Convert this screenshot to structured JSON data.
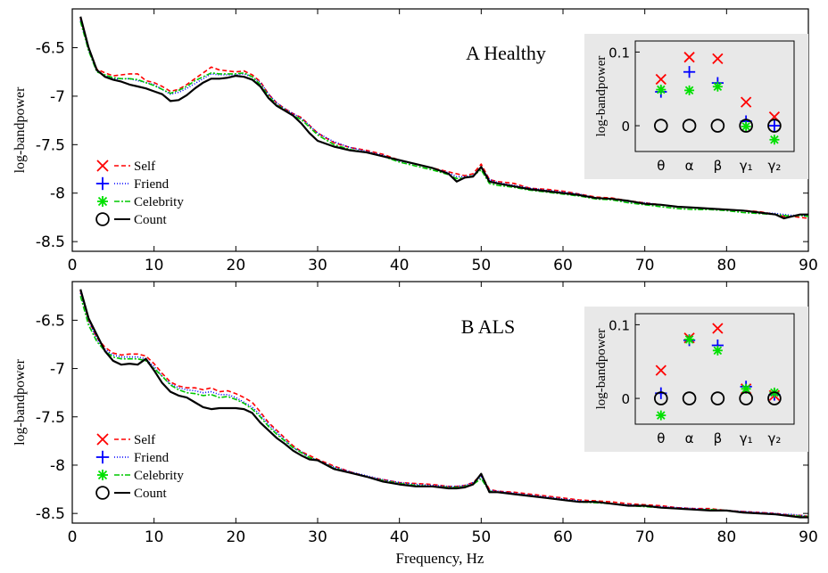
{
  "figure": {
    "xlabel": "Frequency, Hz"
  },
  "chart_data": [
    {
      "type": "line",
      "title": "A Healthy",
      "xlabel": "",
      "ylabel": "log-bandpower",
      "xlim": [
        0,
        90
      ],
      "ylim": [
        -8.6,
        -6.1
      ],
      "xticks": [
        0,
        10,
        20,
        30,
        40,
        50,
        60,
        70,
        80,
        90
      ],
      "yticks": [
        -6.5,
        -7,
        -7.5,
        -8,
        -8.5
      ],
      "ytick_labels": [
        "-6.5",
        "-7",
        "-7.5",
        "-8",
        "-8.5"
      ],
      "legend_position": "bottom-left",
      "x": [
        1,
        2,
        3,
        4,
        5,
        6,
        7,
        8,
        9,
        10,
        11,
        12,
        13,
        14,
        15,
        16,
        17,
        18,
        19,
        20,
        21,
        22,
        23,
        24,
        25,
        26,
        27,
        28,
        29,
        30,
        32,
        34,
        36,
        38,
        40,
        42,
        44,
        46,
        47,
        48,
        49,
        50,
        51,
        52,
        54,
        56,
        58,
        60,
        62,
        64,
        66,
        68,
        70,
        72,
        74,
        76,
        78,
        80,
        82,
        84,
        86,
        87,
        88,
        89,
        90
      ],
      "series": [
        {
          "name": "Self",
          "color": "#ff0000",
          "dash": "5,3",
          "values": [
            -6.2,
            -6.5,
            -6.72,
            -6.76,
            -6.79,
            -6.78,
            -6.77,
            -6.77,
            -6.84,
            -6.86,
            -6.9,
            -6.95,
            -6.93,
            -6.88,
            -6.82,
            -6.76,
            -6.7,
            -6.73,
            -6.74,
            -6.75,
            -6.74,
            -6.78,
            -6.85,
            -6.98,
            -7.07,
            -7.13,
            -7.18,
            -7.22,
            -7.3,
            -7.38,
            -7.48,
            -7.53,
            -7.56,
            -7.6,
            -7.66,
            -7.7,
            -7.74,
            -7.78,
            -7.8,
            -7.82,
            -7.8,
            -7.7,
            -7.86,
            -7.88,
            -7.9,
            -7.95,
            -7.96,
            -7.98,
            -8.01,
            -8.04,
            -8.05,
            -8.08,
            -8.1,
            -8.12,
            -8.14,
            -8.15,
            -8.16,
            -8.17,
            -8.18,
            -8.19,
            -8.22,
            -8.24,
            -8.24,
            -8.25,
            -8.26
          ]
        },
        {
          "name": "Friend",
          "color": "#0000ff",
          "dash": "1,2",
          "values": [
            -6.22,
            -6.52,
            -6.74,
            -6.79,
            -6.82,
            -6.82,
            -6.82,
            -6.84,
            -6.86,
            -6.88,
            -6.93,
            -6.98,
            -6.96,
            -6.92,
            -6.87,
            -6.82,
            -6.77,
            -6.78,
            -6.78,
            -6.78,
            -6.77,
            -6.8,
            -6.86,
            -6.98,
            -7.07,
            -7.13,
            -7.18,
            -7.23,
            -7.3,
            -7.38,
            -7.47,
            -7.53,
            -7.57,
            -7.61,
            -7.67,
            -7.7,
            -7.74,
            -7.79,
            -7.83,
            -7.83,
            -7.82,
            -7.73,
            -7.86,
            -7.89,
            -7.92,
            -7.95,
            -7.97,
            -7.99,
            -8.01,
            -8.05,
            -8.06,
            -8.09,
            -8.1,
            -8.12,
            -8.14,
            -8.15,
            -8.16,
            -8.17,
            -8.18,
            -8.2,
            -8.21,
            -8.22,
            -8.23,
            -8.23,
            -8.24
          ]
        },
        {
          "name": "Celebrity",
          "color": "#00c800",
          "dash": "6,2,2,2",
          "values": [
            -6.23,
            -6.53,
            -6.75,
            -6.78,
            -6.81,
            -6.82,
            -6.82,
            -6.83,
            -6.86,
            -6.89,
            -6.93,
            -6.97,
            -6.94,
            -6.9,
            -6.84,
            -6.8,
            -6.76,
            -6.77,
            -6.77,
            -6.77,
            -6.76,
            -6.8,
            -6.88,
            -7.0,
            -7.09,
            -7.14,
            -7.2,
            -7.24,
            -7.32,
            -7.4,
            -7.5,
            -7.55,
            -7.58,
            -7.62,
            -7.68,
            -7.72,
            -7.76,
            -7.81,
            -7.85,
            -7.84,
            -7.82,
            -7.76,
            -7.9,
            -7.92,
            -7.94,
            -7.97,
            -7.99,
            -8.01,
            -8.03,
            -8.06,
            -8.07,
            -8.1,
            -8.12,
            -8.14,
            -8.16,
            -8.17,
            -8.17,
            -8.18,
            -8.2,
            -8.21,
            -8.22,
            -8.23,
            -8.24,
            -8.23,
            -8.24
          ]
        },
        {
          "name": "Count",
          "color": "#000000",
          "dash": "",
          "values": [
            -6.18,
            -6.5,
            -6.73,
            -6.8,
            -6.83,
            -6.85,
            -6.88,
            -6.9,
            -6.92,
            -6.95,
            -6.98,
            -7.05,
            -7.04,
            -6.99,
            -6.92,
            -6.86,
            -6.82,
            -6.82,
            -6.81,
            -6.79,
            -6.8,
            -6.83,
            -6.9,
            -7.02,
            -7.1,
            -7.15,
            -7.2,
            -7.28,
            -7.38,
            -7.46,
            -7.52,
            -7.56,
            -7.58,
            -7.62,
            -7.66,
            -7.7,
            -7.74,
            -7.8,
            -7.88,
            -7.84,
            -7.83,
            -7.73,
            -7.88,
            -7.9,
            -7.93,
            -7.96,
            -7.98,
            -8.0,
            -8.02,
            -8.05,
            -8.06,
            -8.08,
            -8.11,
            -8.12,
            -8.14,
            -8.15,
            -8.16,
            -8.17,
            -8.18,
            -8.2,
            -8.22,
            -8.26,
            -8.24,
            -8.22,
            -8.22
          ]
        }
      ],
      "inset": {
        "ylabel": "log-bandpower",
        "ylim": [
          -0.035,
          0.115
        ],
        "categories": [
          "θ",
          "α",
          "β",
          "γ₁",
          "γ₂"
        ],
        "ytick_labels": [
          "0",
          "0.1"
        ],
        "yticks": [
          0,
          0.1
        ],
        "series": [
          {
            "name": "Self",
            "marker": "x",
            "color": "#ff0000",
            "values": [
              0.063,
              0.093,
              0.091,
              0.032,
              0.012
            ]
          },
          {
            "name": "Friend",
            "marker": "+",
            "color": "#0000ff",
            "values": [
              0.046,
              0.073,
              0.058,
              0.006,
              0.0
            ]
          },
          {
            "name": "Celebrity",
            "marker": "*",
            "color": "#00e000",
            "values": [
              0.049,
              0.048,
              0.053,
              -0.001,
              -0.019
            ]
          },
          {
            "name": "Count",
            "marker": "o",
            "color": "#000000",
            "values": [
              0,
              0,
              0,
              0,
              0
            ]
          }
        ]
      }
    },
    {
      "type": "line",
      "title": "B ALS",
      "xlabel": "Frequency, Hz",
      "ylabel": "log-bandpower",
      "xlim": [
        0,
        90
      ],
      "ylim": [
        -8.6,
        -6.1
      ],
      "xticks": [
        0,
        10,
        20,
        30,
        40,
        50,
        60,
        70,
        80,
        90
      ],
      "yticks": [
        -6.5,
        -7,
        -7.5,
        -8,
        -8.5
      ],
      "ytick_labels": [
        "-6.5",
        "-7",
        "-7.5",
        "-8",
        "-8.5"
      ],
      "legend_position": "bottom-left",
      "x": [
        1,
        2,
        3,
        4,
        5,
        6,
        7,
        8,
        9,
        10,
        11,
        12,
        13,
        14,
        15,
        16,
        17,
        18,
        19,
        20,
        21,
        22,
        23,
        24,
        25,
        26,
        27,
        28,
        29,
        30,
        32,
        34,
        36,
        38,
        40,
        42,
        44,
        46,
        47,
        48,
        49,
        50,
        51,
        52,
        54,
        56,
        58,
        60,
        62,
        64,
        66,
        68,
        70,
        72,
        74,
        76,
        78,
        80,
        82,
        84,
        86,
        87,
        88,
        89,
        90
      ],
      "series": [
        {
          "name": "Self",
          "color": "#ff0000",
          "dash": "5,3",
          "values": [
            -6.2,
            -6.5,
            -6.68,
            -6.78,
            -6.84,
            -6.86,
            -6.85,
            -6.85,
            -6.87,
            -6.95,
            -7.05,
            -7.14,
            -7.18,
            -7.2,
            -7.2,
            -7.22,
            -7.2,
            -7.24,
            -7.23,
            -7.26,
            -7.3,
            -7.35,
            -7.45,
            -7.56,
            -7.64,
            -7.72,
            -7.8,
            -7.86,
            -7.9,
            -7.94,
            -8.01,
            -8.07,
            -8.12,
            -8.15,
            -8.18,
            -8.19,
            -8.2,
            -8.22,
            -8.22,
            -8.21,
            -8.18,
            -8.1,
            -8.25,
            -8.27,
            -8.28,
            -8.3,
            -8.32,
            -8.34,
            -8.36,
            -8.37,
            -8.38,
            -8.4,
            -8.41,
            -8.42,
            -8.44,
            -8.45,
            -8.45,
            -8.47,
            -8.48,
            -8.49,
            -8.5,
            -8.51,
            -8.52,
            -8.52,
            -8.53
          ]
        },
        {
          "name": "Friend",
          "color": "#0000ff",
          "dash": "1,2",
          "values": [
            -6.22,
            -6.5,
            -6.7,
            -6.8,
            -6.86,
            -6.88,
            -6.88,
            -6.88,
            -6.9,
            -6.98,
            -7.08,
            -7.16,
            -7.2,
            -7.22,
            -7.23,
            -7.25,
            -7.24,
            -7.27,
            -7.27,
            -7.3,
            -7.35,
            -7.4,
            -7.48,
            -7.58,
            -7.66,
            -7.74,
            -7.82,
            -7.86,
            -7.92,
            -7.95,
            -8.02,
            -8.07,
            -8.11,
            -8.15,
            -8.18,
            -8.2,
            -8.21,
            -8.22,
            -8.22,
            -8.21,
            -8.18,
            -8.12,
            -8.26,
            -8.27,
            -8.29,
            -8.31,
            -8.33,
            -8.35,
            -8.37,
            -8.38,
            -8.4,
            -8.41,
            -8.42,
            -8.43,
            -8.44,
            -8.45,
            -8.46,
            -8.47,
            -8.48,
            -8.49,
            -8.5,
            -8.51,
            -8.51,
            -8.52,
            -8.53
          ]
        },
        {
          "name": "Celebrity",
          "color": "#00c800",
          "dash": "6,2,2,2",
          "values": [
            -6.25,
            -6.55,
            -6.72,
            -6.82,
            -6.88,
            -6.9,
            -6.9,
            -6.9,
            -6.92,
            -7.0,
            -7.08,
            -7.17,
            -7.22,
            -7.25,
            -7.26,
            -7.28,
            -7.27,
            -7.3,
            -7.29,
            -7.32,
            -7.36,
            -7.42,
            -7.5,
            -7.6,
            -7.68,
            -7.75,
            -7.82,
            -7.87,
            -7.92,
            -7.95,
            -8.03,
            -8.08,
            -8.12,
            -8.16,
            -8.19,
            -8.21,
            -8.22,
            -8.23,
            -8.23,
            -8.22,
            -8.2,
            -8.14,
            -8.27,
            -8.28,
            -8.3,
            -8.32,
            -8.34,
            -8.36,
            -8.38,
            -8.39,
            -8.4,
            -8.42,
            -8.43,
            -8.44,
            -8.45,
            -8.46,
            -8.46,
            -8.47,
            -8.49,
            -8.5,
            -8.51,
            -8.52,
            -8.52,
            -8.53,
            -8.53
          ]
        },
        {
          "name": "Count",
          "color": "#000000",
          "dash": "",
          "values": [
            -6.18,
            -6.48,
            -6.65,
            -6.82,
            -6.92,
            -6.96,
            -6.95,
            -6.96,
            -6.9,
            -7.02,
            -7.15,
            -7.24,
            -7.28,
            -7.3,
            -7.35,
            -7.4,
            -7.42,
            -7.41,
            -7.41,
            -7.41,
            -7.42,
            -7.46,
            -7.56,
            -7.64,
            -7.72,
            -7.78,
            -7.85,
            -7.9,
            -7.94,
            -7.95,
            -8.04,
            -8.08,
            -8.12,
            -8.17,
            -8.2,
            -8.22,
            -8.22,
            -8.24,
            -8.24,
            -8.23,
            -8.2,
            -8.09,
            -8.28,
            -8.28,
            -8.3,
            -8.32,
            -8.34,
            -8.36,
            -8.38,
            -8.38,
            -8.4,
            -8.42,
            -8.42,
            -8.44,
            -8.45,
            -8.46,
            -8.47,
            -8.47,
            -8.49,
            -8.5,
            -8.51,
            -8.52,
            -8.53,
            -8.54,
            -8.54
          ]
        }
      ],
      "inset": {
        "ylabel": "log-bandpower",
        "ylim": [
          -0.035,
          0.115
        ],
        "categories": [
          "θ",
          "α",
          "β",
          "γ₁",
          "γ₂"
        ],
        "ytick_labels": [
          "0",
          "0.1"
        ],
        "yticks": [
          0,
          0.1
        ],
        "series": [
          {
            "name": "Self",
            "marker": "x",
            "color": "#ff0000",
            "values": [
              0.038,
              0.082,
              0.095,
              0.013,
              0.004
            ]
          },
          {
            "name": "Friend",
            "marker": "+",
            "color": "#0000ff",
            "values": [
              0.007,
              0.079,
              0.072,
              0.016,
              0.005
            ]
          },
          {
            "name": "Celebrity",
            "marker": "*",
            "color": "#00e000",
            "values": [
              -0.023,
              0.08,
              0.065,
              0.013,
              0.008
            ]
          },
          {
            "name": "Count",
            "marker": "o",
            "color": "#000000",
            "values": [
              0,
              0,
              0,
              0,
              0
            ]
          }
        ]
      }
    }
  ]
}
